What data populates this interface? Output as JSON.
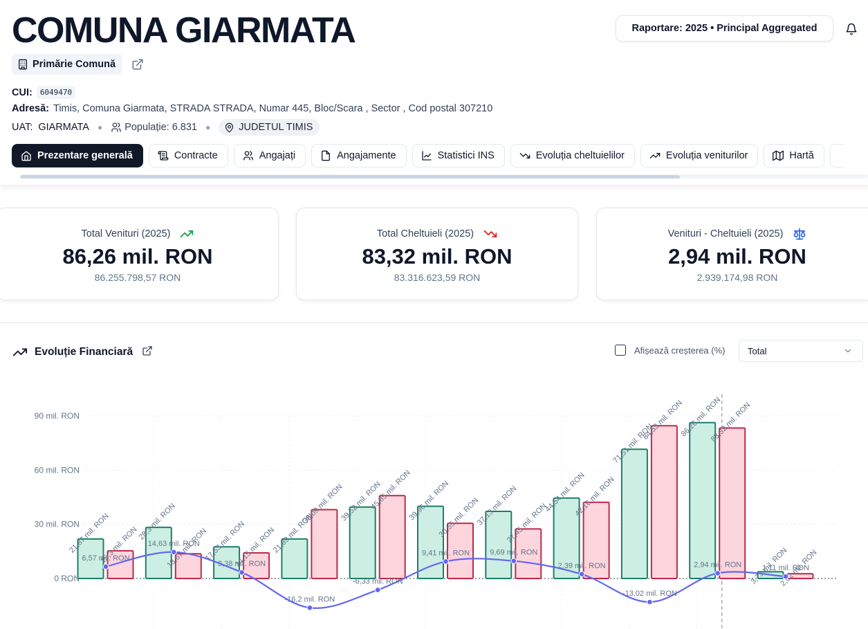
{
  "header": {
    "title": "COMUNA GIARMATA",
    "report_label": "Raportare: 2025 • Principal Aggregated",
    "entity_type": "Primărie Comună",
    "cui_label": "CUI:",
    "cui_value": "6049470",
    "address_label": "Adresă:",
    "address_value": "Timis, Comuna Giarmata, STRADA STRADA, Numar 445, Bloc/Scara , Sector , Cod postal 307210",
    "uat_label": "UAT:",
    "uat_value": "GIARMATA",
    "population": "Populație: 6.831",
    "county": "JUDETUL TIMIS"
  },
  "tabs": [
    {
      "label": "Prezentare generală",
      "icon": "home-icon",
      "active": true
    },
    {
      "label": "Contracte",
      "icon": "scroll-icon"
    },
    {
      "label": "Angajați",
      "icon": "users-icon"
    },
    {
      "label": "Angajamente",
      "icon": "file-icon"
    },
    {
      "label": "Statistici INS",
      "icon": "line-chart-icon"
    },
    {
      "label": "Evoluția cheltuielilor",
      "icon": "trending-down-icon"
    },
    {
      "label": "Evoluția veniturilor",
      "icon": "trending-up-icon"
    },
    {
      "label": "Hartă",
      "icon": "map-icon"
    }
  ],
  "cards": [
    {
      "label": "Total Venituri (2025)",
      "value": "86,26 mil. RON",
      "sub": "86.255.798,57 RON",
      "icon": "trending-up-icon",
      "color": "#16a34a"
    },
    {
      "label": "Total Cheltuieli (2025)",
      "value": "83,32 mil. RON",
      "sub": "83.316.623,59 RON",
      "icon": "trending-down-icon",
      "color": "#dc2626"
    },
    {
      "label": "Venituri - Cheltuieli (2025)",
      "value": "2,94 mil. RON",
      "sub": "2.939.174,98 RON",
      "icon": "scale-icon",
      "color": "#2563eb"
    }
  ],
  "chart_section": {
    "title": "Evoluție Financiară",
    "growth_toggle_label": "Afișează creșterea (%)",
    "growth_checked": false,
    "select_value": "Total"
  },
  "chart_data": {
    "type": "bar",
    "y_ticks": [
      "90 mil. RON",
      "60 mil. RON",
      "30 mil. RON",
      "0 RON"
    ],
    "ylim": [
      -30,
      100
    ],
    "grid": true,
    "colors": {
      "income": "#1a7f6b",
      "income_fill": "#cdeee2",
      "expense": "#c0284a",
      "expense_fill": "#fdd5dd",
      "balance": "#6366f1"
    },
    "groups": [
      {
        "income": 21.87,
        "expense": 15.3,
        "balance": 6.57,
        "income_label": "21,87 mil. RON",
        "expense_label": "15,3 mil. RON",
        "balance_label": "6,57 mil. RON"
      },
      {
        "income": 28.3,
        "expense": 13.67,
        "balance": 14.63,
        "income_label": "28,3 mil. RON",
        "expense_label": "13,67 mil. RON",
        "balance_label": "14,63 mil. RON"
      },
      {
        "income": 17.53,
        "expense": 14.15,
        "balance": 3.38,
        "income_label": "17,53 mil. RON",
        "expense_label": "14,15 mil. RON",
        "balance_label": "3,38 mil. RON"
      },
      {
        "income": 21.89,
        "expense": 38.09,
        "balance": -16.2,
        "income_label": "21,89 mil. RON",
        "expense_label": "38,09 mil. RON",
        "balance_label": "-16,2 mil. RON"
      },
      {
        "income": 39.52,
        "expense": 45.85,
        "balance": -6.33,
        "income_label": "39,52 mil. RON",
        "expense_label": "45,85 mil. RON",
        "balance_label": "-6,33 mil. RON"
      },
      {
        "income": 39.96,
        "expense": 30.55,
        "balance": 9.41,
        "income_label": "39,96 mil. RON",
        "expense_label": "30,55 mil. RON",
        "balance_label": "9,41 mil. RON"
      },
      {
        "income": 37.13,
        "expense": 27.45,
        "balance": 9.69,
        "income_label": "37,13 mil. RON",
        "expense_label": "27,45 mil. RON",
        "balance_label": "9,69 mil. RON"
      },
      {
        "income": 44.54,
        "expense": 42.16,
        "balance": 2.39,
        "income_label": "44,54 mil. RON",
        "expense_label": "42,16 mil. RON",
        "balance_label": "2,39 mil. RON"
      },
      {
        "income": 71.51,
        "expense": 84.53,
        "balance": -13.02,
        "income_label": "71,51 mil. RON",
        "expense_label": "84,53 mil. RON",
        "balance_label": "-13,02 mil. RON"
      },
      {
        "income": 86.26,
        "expense": 83.32,
        "balance": 2.94,
        "income_label": "86,26 mil. RON",
        "expense_label": "83,32 mil. RON",
        "balance_label": "2,94 mil. RON"
      },
      {
        "income": 3.73,
        "expense": 2.62,
        "balance": 1.11,
        "income_label": "3,73 mil. RON",
        "expense_label": "2,62 mil. RON",
        "balance_label": "1,11 mil. RON"
      }
    ],
    "highlighted_group": 9
  }
}
